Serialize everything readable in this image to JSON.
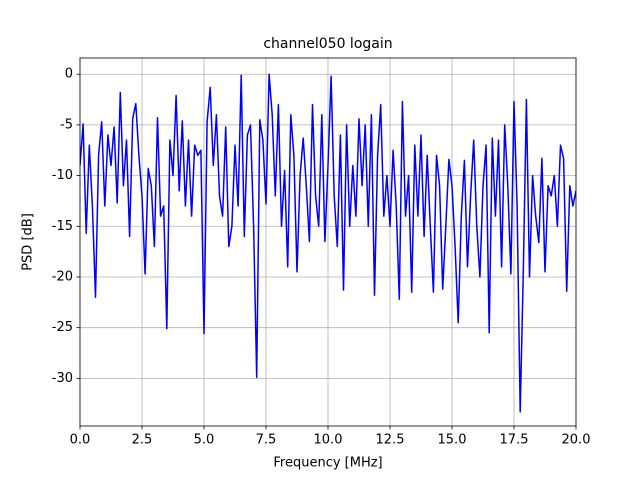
{
  "chart_data": {
    "type": "line",
    "title": "channel050 logain",
    "xlabel": "Frequency [MHz]",
    "ylabel": "PSD [dB]",
    "x": [
      0,
      0.125,
      0.25,
      0.375,
      0.5,
      0.625,
      0.75,
      0.875,
      1,
      1.125,
      1.25,
      1.375,
      1.5,
      1.625,
      1.75,
      1.875,
      2,
      2.125,
      2.25,
      2.375,
      2.5,
      2.625,
      2.75,
      2.875,
      3,
      3.125,
      3.25,
      3.375,
      3.5,
      3.625,
      3.75,
      3.875,
      4,
      4.125,
      4.25,
      4.375,
      4.5,
      4.625,
      4.75,
      4.875,
      5,
      5.125,
      5.25,
      5.375,
      5.5,
      5.625,
      5.75,
      5.875,
      6,
      6.125,
      6.25,
      6.375,
      6.5,
      6.625,
      6.75,
      6.875,
      7,
      7.125,
      7.25,
      7.375,
      7.5,
      7.625,
      7.75,
      7.875,
      8,
      8.125,
      8.25,
      8.375,
      8.5,
      8.625,
      8.75,
      8.875,
      9,
      9.125,
      9.25,
      9.375,
      9.5,
      9.625,
      9.75,
      9.875,
      10,
      10.125,
      10.25,
      10.375,
      10.5,
      10.625,
      10.75,
      10.875,
      11,
      11.125,
      11.25,
      11.375,
      11.5,
      11.625,
      11.75,
      11.875,
      12,
      12.125,
      12.25,
      12.375,
      12.5,
      12.625,
      12.75,
      12.875,
      13,
      13.125,
      13.25,
      13.375,
      13.5,
      13.625,
      13.75,
      13.875,
      14,
      14.125,
      14.25,
      14.375,
      14.5,
      14.625,
      14.75,
      14.875,
      15,
      15.125,
      15.25,
      15.375,
      15.5,
      15.625,
      15.75,
      15.875,
      16,
      16.125,
      16.25,
      16.375,
      16.5,
      16.625,
      16.75,
      16.875,
      17,
      17.125,
      17.25,
      17.375,
      17.5,
      17.625,
      17.75,
      17.875,
      18,
      18.125,
      18.25,
      18.375,
      18.5,
      18.625,
      18.75,
      18.875,
      19,
      19.125,
      19.25,
      19.375,
      19.5,
      19.625,
      19.75,
      19.875,
      20
    ],
    "series": [
      {
        "name": "channel050 logain",
        "color": "#0000ff",
        "values": [
          -9,
          -4.9,
          -15.7,
          -7,
          -13,
          -22,
          -8,
          -4.7,
          -13,
          -6,
          -9,
          -5.2,
          -12.7,
          -1.8,
          -11,
          -6.5,
          -16,
          -4.4,
          -2.9,
          -8,
          -12,
          -19.7,
          -9.3,
          -11,
          -17,
          -4.3,
          -14,
          -13,
          -25.1,
          -6.5,
          -10,
          -2.1,
          -11.5,
          -4.6,
          -13,
          -6.5,
          -14,
          -7,
          -8,
          -7.5,
          -25.6,
          -4.7,
          -1.3,
          -9,
          -4,
          -12,
          -14,
          -5.2,
          -17,
          -15,
          -7,
          -13,
          -0.1,
          -16,
          -6,
          -5,
          -15,
          -29.9,
          -4.5,
          -6.5,
          -12.8,
          0,
          -4,
          -12,
          -3,
          -15,
          -9.5,
          -19,
          -4,
          -8,
          -19.5,
          -10,
          -6.3,
          -11,
          -16.5,
          -3,
          -12,
          -15,
          -4,
          -16.5,
          -9,
          -0.2,
          -12,
          -17,
          -6,
          -21.3,
          -5,
          -15,
          -9,
          -14,
          -4.4,
          -11,
          -5,
          -15,
          -4,
          -21.8,
          -8,
          -3,
          -14,
          -10,
          -15,
          -7.5,
          -13,
          -22.2,
          -2.7,
          -14,
          -10,
          -21.5,
          -7,
          -14,
          -6,
          -16,
          -8,
          -15,
          -21.5,
          -8,
          -11,
          -21.2,
          -15,
          -8.4,
          -11,
          -17,
          -24.5,
          -14,
          -8.5,
          -19,
          -12,
          -6.5,
          -15,
          -20,
          -11,
          -7,
          -25.5,
          -6.3,
          -14,
          -6.5,
          -19,
          -5,
          -11,
          -19.7,
          -2.7,
          -13,
          -33.3,
          -19.5,
          -2.5,
          -20,
          -10,
          -14,
          -16.6,
          -8.3,
          -19.5,
          -11,
          -12,
          -10,
          -15,
          -7,
          -8.3,
          -21.4,
          -11,
          -13,
          -11.5
        ]
      }
    ],
    "xlim": [
      0,
      20
    ],
    "ylim": [
      -34.7,
      1.6
    ],
    "xticks": [
      {
        "value": 0,
        "label": "0.0"
      },
      2.5,
      {
        "value": 5,
        "label": "5.0"
      },
      7.5,
      {
        "value": 10,
        "label": "10.0"
      },
      12.5,
      {
        "value": 15,
        "label": "15.0"
      },
      17.5,
      {
        "value": 20,
        "label": "20.0"
      }
    ],
    "yticks": [
      -30,
      -25,
      -20,
      -15,
      -10,
      -5,
      0
    ],
    "grid": true
  }
}
